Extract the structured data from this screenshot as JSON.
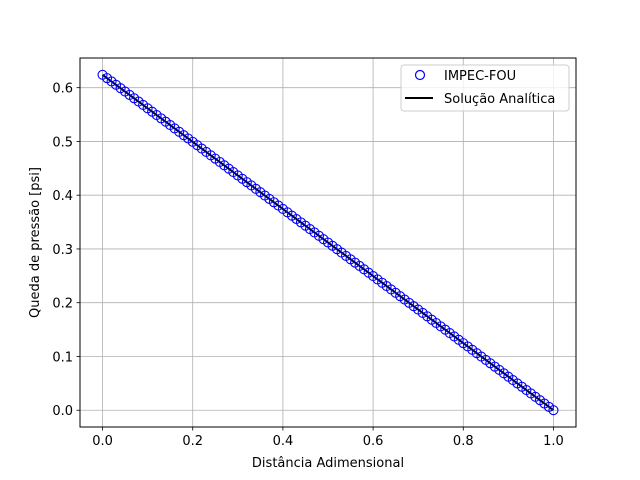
{
  "chart_data": {
    "type": "scatter",
    "title": "",
    "xlabel": "Distância Adimensional",
    "ylabel": "Queda de pressão [psi]",
    "xlim": [
      -0.05,
      1.05
    ],
    "ylim": [
      -0.0312,
      0.6552
    ],
    "xticks": [
      0.0,
      0.2,
      0.4,
      0.6,
      0.8,
      1.0
    ],
    "xtick_labels": [
      "0.0",
      "0.2",
      "0.4",
      "0.6",
      "0.8",
      "1.0"
    ],
    "yticks": [
      0.0,
      0.1,
      0.2,
      0.3,
      0.4,
      0.5,
      0.6
    ],
    "ytick_labels": [
      "0.0",
      "0.1",
      "0.2",
      "0.3",
      "0.4",
      "0.5",
      "0.6"
    ],
    "grid": true,
    "legend_position": "top-right",
    "series": [
      {
        "name": "IMPEC-FOU",
        "kind": "marker",
        "marker": "open-circle",
        "color": "#0000ff",
        "x_start": 0.0,
        "x_end": 1.0,
        "n_points": 101,
        "y_start": 0.624,
        "y_end": 0.0
      },
      {
        "name": "Solução Analítica",
        "kind": "line",
        "color": "#000000",
        "x": [
          0.0,
          1.0
        ],
        "y": [
          0.624,
          0.0
        ]
      }
    ]
  }
}
